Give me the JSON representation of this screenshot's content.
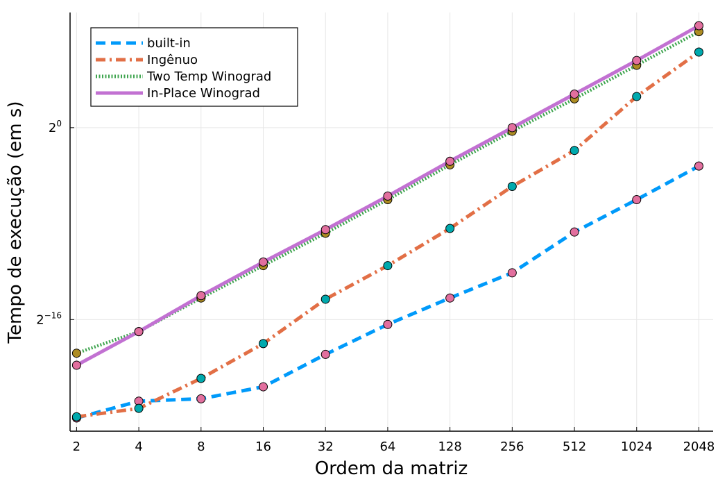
{
  "chart_data": {
    "type": "line",
    "title": "",
    "xlabel": "Ordem da matriz",
    "ylabel": "Tempo de execução (em s)",
    "x_scale": "log2",
    "y_scale": "log2",
    "x": [
      2,
      4,
      8,
      16,
      32,
      64,
      128,
      256,
      512,
      1024,
      2048
    ],
    "x_tick_labels": [
      "2",
      "4",
      "8",
      "16",
      "32",
      "64",
      "128",
      "256",
      "512",
      "1024",
      "2048"
    ],
    "y_ticks": [
      {
        "value_log2": 0,
        "base": "2",
        "exp": "0"
      },
      {
        "value_log2": -16,
        "base": "2",
        "exp": "−16"
      }
    ],
    "xlim": [
      1.86,
      2400
    ],
    "ylim_log2": [
      -25.3,
      9.6
    ],
    "grid": true,
    "legend_position": "top-left",
    "series": [
      {
        "name": "built-in",
        "color": "#009AFA",
        "style": "dash",
        "values_log2": [
          -24.2,
          -22.8,
          -22.6,
          -21.6,
          -18.9,
          -16.4,
          -14.2,
          -12.1,
          -8.7,
          -6.0,
          -3.2
        ]
      },
      {
        "name": "Ingênuo",
        "color": "#E26F46",
        "style": "dashdot",
        "values_log2": [
          -24.1,
          -23.4,
          -20.9,
          -18.0,
          -14.3,
          -11.5,
          -8.4,
          -4.9,
          -1.9,
          2.6,
          6.3
        ]
      },
      {
        "name": "Two Temp Winograd",
        "color": "#3EA44E",
        "style": "dot",
        "values_log2": [
          -18.8,
          -17.0,
          -14.2,
          -11.5,
          -8.8,
          -6.0,
          -3.1,
          -0.3,
          2.4,
          5.2,
          8.0
        ]
      },
      {
        "name": "In-Place Winograd",
        "color": "#C271D2",
        "style": "solid",
        "values_log2": [
          -19.8,
          -17.0,
          -14.0,
          -11.2,
          -8.5,
          -5.7,
          -2.8,
          0.0,
          2.8,
          5.6,
          8.5
        ]
      }
    ],
    "marker_colors": [
      "#E26F9E",
      "#00A9AD",
      "#AD8C22"
    ]
  }
}
